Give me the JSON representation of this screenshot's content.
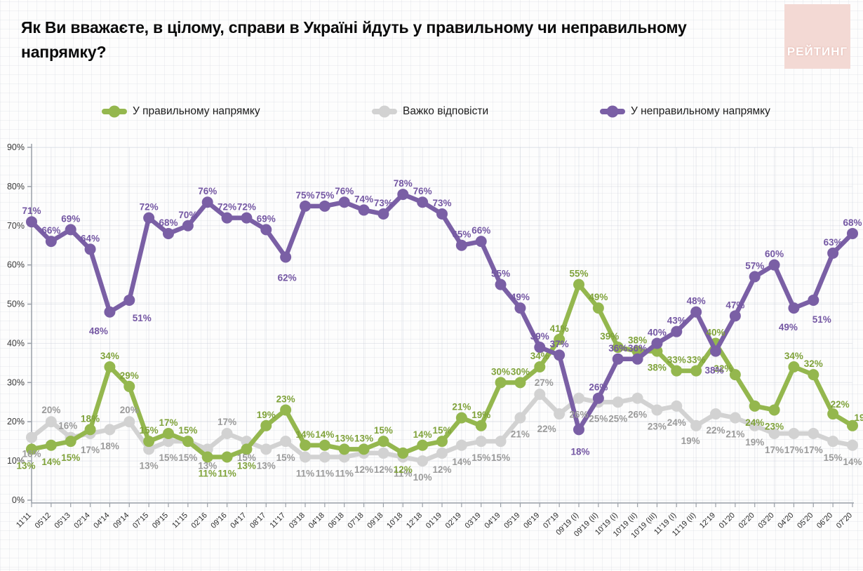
{
  "header": {
    "title": "Як Ви вважаєте, в цілому, справи в Україні йдуть у правильному чи неправильному напрямку?",
    "logo_text": "РЕЙТИНГ"
  },
  "legend": [
    {
      "label": "У правильному напрямку",
      "color": "#94b74e"
    },
    {
      "label": "Важко відповісти",
      "color": "#d2d2d2"
    },
    {
      "label": "У неправильному напрямку",
      "color": "#7a5fa5"
    }
  ],
  "chart_data": {
    "type": "line",
    "title": "",
    "xlabel": "",
    "ylabel": "",
    "ylim": [
      0,
      90
    ],
    "grid": true,
    "legend_position": "top",
    "y_ticks": [
      "0%",
      "10%",
      "20%",
      "30%",
      "40%",
      "50%",
      "60%",
      "70%",
      "80%",
      "90%"
    ],
    "categories": [
      "11'11",
      "05'12",
      "05'13",
      "02'14",
      "04'14",
      "09'14",
      "07'15",
      "09'15",
      "11'15",
      "02'16",
      "09'16",
      "04'17",
      "08'17",
      "11'17",
      "03'18",
      "04'18",
      "06'18",
      "07'18",
      "09'18",
      "10'18",
      "12'18",
      "01'19",
      "02'19",
      "03'19",
      "04'19",
      "05'19",
      "06'19",
      "07'19",
      "09'19 (I)",
      "09'19 (II)",
      "10'19 (I)",
      "10'19 (II)",
      "10'19 (III)",
      "11'19 (I)",
      "11'19 (II)",
      "12'19",
      "01'20",
      "02'20",
      "03'20",
      "04'20",
      "05'20",
      "06'20",
      "07'20"
    ],
    "series": [
      {
        "name": "У правильному напрямку",
        "color": "#94b74e",
        "label_color": "#7fa23a",
        "values": [
          13,
          14,
          15,
          18,
          34,
          29,
          15,
          17,
          15,
          11,
          11,
          13,
          19,
          23,
          14,
          14,
          13,
          13,
          15,
          12,
          14,
          15,
          21,
          19,
          30,
          30,
          34,
          41,
          55,
          49,
          39,
          38,
          38,
          33,
          33,
          40,
          32,
          24,
          23,
          34,
          32,
          22,
          19
        ]
      },
      {
        "name": "Важко відповісти",
        "color": "#d2d2d2",
        "label_color": "#9a9a9a",
        "values": [
          16,
          20,
          16,
          17,
          18,
          20,
          13,
          15,
          15,
          13,
          17,
          15,
          13,
          15,
          11,
          11,
          11,
          12,
          12,
          11,
          10,
          12,
          14,
          15,
          15,
          21,
          27,
          22,
          26,
          25,
          25,
          26,
          23,
          24,
          19,
          22,
          21,
          19,
          17,
          17,
          17,
          15,
          14
        ]
      },
      {
        "name": "У неправильному напрямку",
        "color": "#7a5fa5",
        "label_color": "#7457a3",
        "values": [
          71,
          66,
          69,
          64,
          48,
          51,
          72,
          68,
          70,
          76,
          72,
          72,
          69,
          62,
          75,
          75,
          76,
          74,
          73,
          78,
          76,
          73,
          65,
          66,
          55,
          49,
          39,
          37,
          18,
          26,
          36,
          36,
          40,
          43,
          48,
          38,
          47,
          57,
          60,
          49,
          51,
          63,
          68
        ]
      }
    ]
  }
}
